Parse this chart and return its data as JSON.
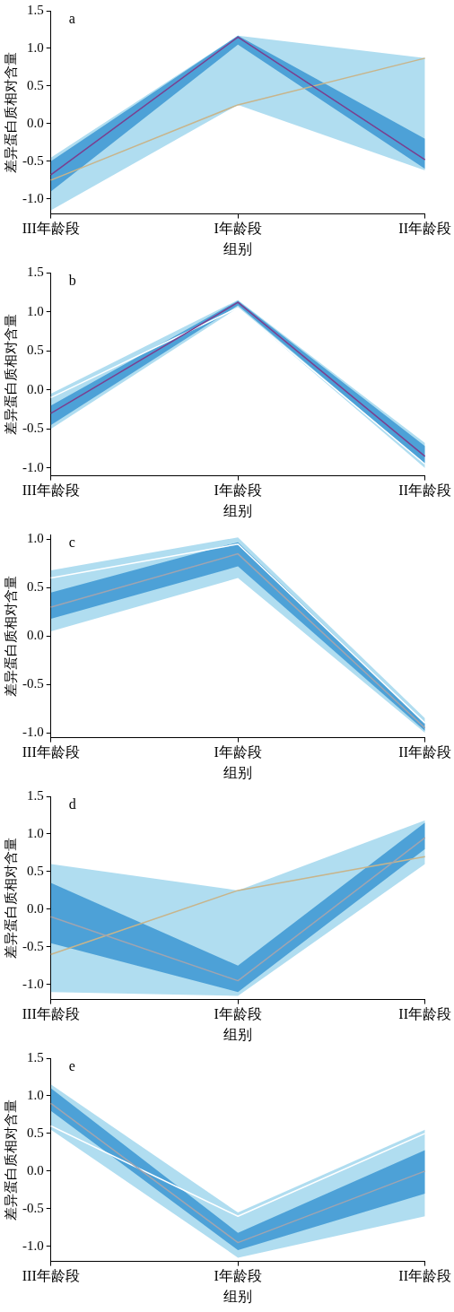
{
  "chart_data": [
    {
      "type": "line",
      "title": "a",
      "xlabel": "组别",
      "ylabel": "差异蛋白质相对含量",
      "categories": [
        "III年龄段",
        "I年龄段",
        "II年龄段"
      ],
      "ylim": [
        -1.2,
        1.5
      ],
      "yticks": [
        {
          "value": -1,
          "label": "-1.0"
        },
        -0.5,
        {
          "value": 0,
          "label": "0.0"
        },
        0.5,
        {
          "value": 1,
          "label": "1.0"
        },
        1.5
      ],
      "grid": false,
      "legend": false,
      "marker": "none",
      "line_style": "solid",
      "series": [
        {
          "color": "#c8b48a",
          "values": [
            -0.75,
            0.25,
            0.87
          ],
          "lower": [
            -1.15,
            0.25,
            -0.62
          ],
          "upper": [
            -0.45,
            1.17,
            0.87
          ]
        },
        {
          "color": "#7b3f8f",
          "values": [
            -0.68,
            1.15,
            -0.48
          ],
          "lower": [
            -0.9,
            1.05,
            -0.6
          ],
          "upper": [
            -0.5,
            1.17,
            -0.2
          ]
        }
      ]
    },
    {
      "type": "line",
      "title": "b",
      "xlabel": "组别",
      "ylabel": "差异蛋白质相对含量",
      "categories": [
        "III年龄段",
        "I年龄段",
        "II年龄段"
      ],
      "ylim": [
        -1.1,
        1.5
      ],
      "yticks": [
        {
          "value": -1,
          "label": "-1.0"
        },
        -0.5,
        {
          "value": 0,
          "label": "0.0"
        },
        0.5,
        {
          "value": 1,
          "label": "1.0"
        },
        1.5
      ],
      "grid": false,
      "legend": false,
      "marker": "none",
      "line_style": "solid",
      "series": [
        {
          "color": "#ffffff",
          "values": [
            -0.1,
            1.05,
            -0.95
          ],
          "lower": [
            -0.5,
            1.05,
            -1.0
          ],
          "upper": [
            -0.05,
            1.15,
            -0.68
          ]
        },
        {
          "color": "#7b3f8f",
          "values": [
            -0.3,
            1.12,
            -0.85
          ],
          "lower": [
            -0.45,
            1.08,
            -0.95
          ],
          "upper": [
            -0.2,
            1.14,
            -0.72
          ]
        }
      ]
    },
    {
      "type": "line",
      "title": "c",
      "xlabel": "组别",
      "ylabel": "差异蛋白质相对含量",
      "categories": [
        "III年龄段",
        "I年龄段",
        "II年龄段"
      ],
      "ylim": [
        -1.05,
        1.05
      ],
      "yticks": [
        {
          "value": -1,
          "label": "-1.0"
        },
        -0.5,
        {
          "value": 0,
          "label": "0.0"
        },
        0.5,
        {
          "value": 1,
          "label": "1.0"
        }
      ],
      "grid": false,
      "legend": false,
      "marker": "none",
      "line_style": "solid",
      "series": [
        {
          "color": "#ffffff",
          "values": [
            0.6,
            0.95,
            -0.9
          ],
          "lower": [
            0.05,
            0.6,
            -1.0
          ],
          "upper": [
            0.68,
            1.02,
            -0.85
          ]
        },
        {
          "color": "#a0a4b0",
          "values": [
            0.3,
            0.85,
            -0.95
          ],
          "lower": [
            0.18,
            0.72,
            -0.98
          ],
          "upper": [
            0.45,
            0.97,
            -0.9
          ]
        }
      ]
    },
    {
      "type": "line",
      "title": "d",
      "xlabel": "组别",
      "ylabel": "差异蛋白质相对含量",
      "categories": [
        "III年龄段",
        "I年龄段",
        "II年龄段"
      ],
      "ylim": [
        -1.2,
        1.5
      ],
      "yticks": [
        {
          "value": -1,
          "label": "-1.0"
        },
        -0.5,
        {
          "value": 0,
          "label": "0.0"
        },
        0.5,
        {
          "value": 1,
          "label": "1.0"
        },
        1.5
      ],
      "grid": false,
      "legend": false,
      "marker": "none",
      "line_style": "solid",
      "series": [
        {
          "color": "#c8b48a",
          "values": [
            -0.6,
            0.25,
            0.7
          ],
          "lower": [
            -1.1,
            -1.15,
            0.6
          ],
          "upper": [
            0.6,
            0.25,
            1.18
          ]
        },
        {
          "color": "#a0a4b0",
          "values": [
            -0.1,
            -0.95,
            0.95
          ],
          "lower": [
            -0.45,
            -1.1,
            0.8
          ],
          "upper": [
            0.35,
            -0.75,
            1.15
          ]
        }
      ]
    },
    {
      "type": "line",
      "title": "e",
      "xlabel": "组别",
      "ylabel": "差异蛋白质相对含量",
      "categories": [
        "III年龄段",
        "I年龄段",
        "II年龄段"
      ],
      "ylim": [
        -1.2,
        1.5
      ],
      "yticks": [
        {
          "value": -1,
          "label": "-1.0"
        },
        -0.5,
        {
          "value": 0,
          "label": "0.0"
        },
        0.5,
        {
          "value": 1,
          "label": "1.0"
        },
        1.5
      ],
      "grid": false,
      "legend": false,
      "marker": "none",
      "line_style": "solid",
      "series": [
        {
          "color": "#ffffff",
          "values": [
            0.6,
            -0.6,
            0.5
          ],
          "lower": [
            0.55,
            -1.15,
            -0.6
          ],
          "upper": [
            1.15,
            -0.55,
            0.55
          ]
        },
        {
          "color": "#a0a4b0",
          "values": [
            0.9,
            -0.95,
            0.0
          ],
          "lower": [
            0.8,
            -1.05,
            -0.3
          ],
          "upper": [
            1.1,
            -0.82,
            0.28
          ]
        }
      ]
    }
  ]
}
